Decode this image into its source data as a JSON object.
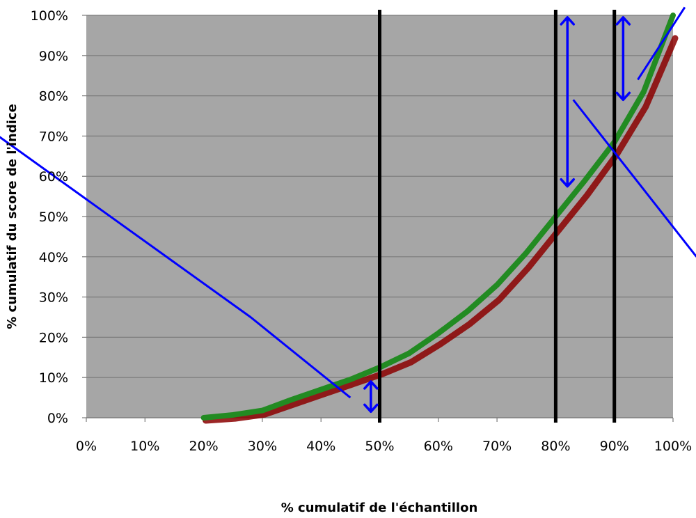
{
  "chart_data": {
    "type": "line",
    "title": "",
    "xlabel": "% cumulatif de l'échantillon",
    "ylabel": "% cumulatif du score de l'indice",
    "xlim": [
      0,
      100
    ],
    "ylim": [
      0,
      100
    ],
    "x_ticks": [
      "0%",
      "10%",
      "20%",
      "30%",
      "40%",
      "50%",
      "60%",
      "70%",
      "80%",
      "90%",
      "100%"
    ],
    "y_ticks": [
      "0%",
      "10%",
      "20%",
      "30%",
      "40%",
      "50%",
      "60%",
      "70%",
      "80%",
      "90%",
      "100%"
    ],
    "grid": "horizontal",
    "plot_background": "#a6a6a6",
    "series": [
      {
        "color": "#8b0000",
        "x": [
          20,
          25,
          30,
          35,
          40,
          45,
          50,
          55,
          60,
          65,
          70,
          75,
          80,
          85,
          90,
          95,
          100
        ],
        "y": [
          0,
          0.5,
          1.5,
          4,
          6.5,
          9,
          11.5,
          14.5,
          19,
          24,
          30,
          38,
          47,
          56,
          66,
          78,
          95
        ]
      },
      {
        "color": "#228b22",
        "x": [
          20,
          25,
          30,
          35,
          40,
          45,
          50,
          55,
          60,
          65,
          70,
          75,
          80,
          85,
          90,
          95,
          100
        ],
        "y": [
          0,
          0.7,
          1.8,
          4.5,
          7,
          9.5,
          12.5,
          16,
          21,
          26.5,
          33,
          41,
          50,
          59,
          68.5,
          81,
          100
        ]
      }
    ],
    "reference_lines_x": [
      50,
      80,
      90
    ],
    "overlay_lines": [
      {
        "color": "#0000ff",
        "x": [
          -15,
          28,
          45
        ],
        "y": [
          70,
          25,
          5
        ]
      },
      {
        "color": "#0000ff",
        "x": [
          83,
          104
        ],
        "y": [
          79,
          40
        ]
      },
      {
        "color": "#0000ff",
        "x": [
          94,
          102
        ],
        "y": [
          84,
          102
        ]
      }
    ],
    "double_arrows": [
      {
        "color": "#0000ff",
        "x": 48.5,
        "y1": 1.5,
        "y2": 9
      },
      {
        "color": "#0000ff",
        "x": 82,
        "y1": 57.5,
        "y2": 99.5
      },
      {
        "color": "#0000ff",
        "x": 91.5,
        "y1": 79,
        "y2": 99.5
      }
    ]
  }
}
